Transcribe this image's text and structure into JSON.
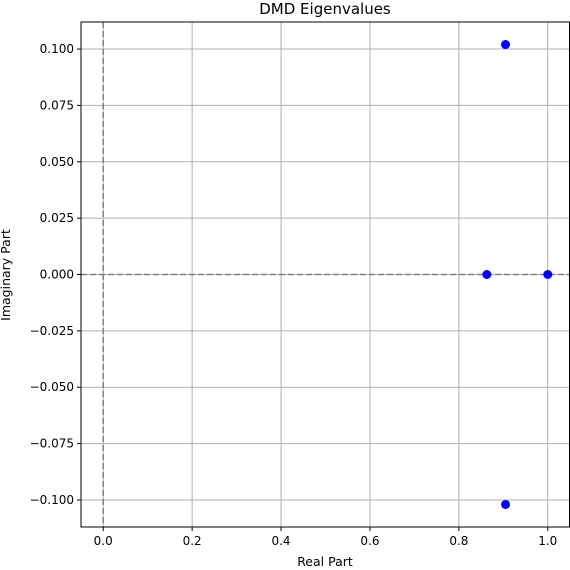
{
  "chart_data": {
    "type": "scatter",
    "title": "DMD Eigenvalues",
    "xlabel": "Real Part",
    "ylabel": "Imaginary Part",
    "xlim": [
      -0.05,
      1.05
    ],
    "ylim": [
      -0.112,
      0.112
    ],
    "xticks": [
      0.0,
      0.2,
      0.4,
      0.6,
      0.8,
      1.0
    ],
    "xtick_labels": [
      "0.0",
      "0.2",
      "0.4",
      "0.6",
      "0.8",
      "1.0"
    ],
    "yticks": [
      0.1,
      0.075,
      0.05,
      0.025,
      0.0,
      -0.025,
      -0.05,
      -0.075,
      -0.1
    ],
    "ytick_labels": [
      "0.100",
      "0.075",
      "0.050",
      "0.025",
      "0.000",
      "−0.025",
      "−0.050",
      "−0.075",
      "−0.100"
    ],
    "grid": true,
    "reference_lines": {
      "x": 0,
      "y": 0,
      "style": "dashed",
      "color": "#808080"
    },
    "series": [
      {
        "color": "#0000ff",
        "points": [
          {
            "x": 0.905,
            "y": 0.102
          },
          {
            "x": 0.863,
            "y": 0.0
          },
          {
            "x": 1.0,
            "y": 0.0
          },
          {
            "x": 0.905,
            "y": -0.102
          }
        ]
      }
    ]
  }
}
